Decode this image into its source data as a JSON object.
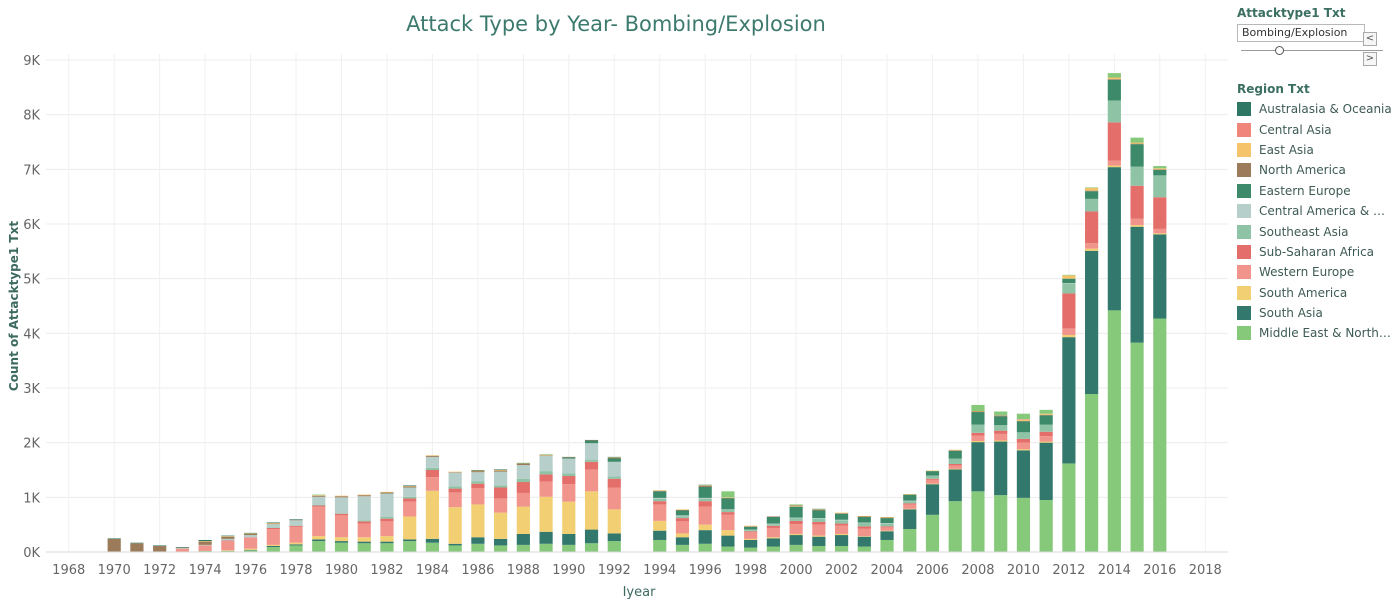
{
  "header": {
    "title": "Attack Type by Year- Bombing/Explosion"
  },
  "filter": {
    "title": "Attacktype1 Txt",
    "value": "Bombing/Explosion",
    "prev_icon": "chevron-left-icon",
    "next_icon": "chevron-right-icon",
    "prev_glyph": "<",
    "next_glyph": ">"
  },
  "legend": {
    "title": "Region Txt",
    "items": [
      {
        "label": "Australasia & Oceania",
        "color": "#2e7764"
      },
      {
        "label": "Central Asia",
        "color": "#f0857b"
      },
      {
        "label": "East Asia",
        "color": "#f5c46a"
      },
      {
        "label": "North America",
        "color": "#9c7b5a"
      },
      {
        "label": "Eastern Europe",
        "color": "#3c8a6a"
      },
      {
        "label": "Central America & Car..",
        "color": "#b6cfca"
      },
      {
        "label": "Southeast Asia",
        "color": "#8ec3a6"
      },
      {
        "label": "Sub-Saharan Africa",
        "color": "#e46f6a"
      },
      {
        "label": "Western Europe",
        "color": "#f1958c"
      },
      {
        "label": "South America",
        "color": "#f2cf72"
      },
      {
        "label": "South Asia",
        "color": "#33786d"
      },
      {
        "label": "Middle East & North A..",
        "color": "#86c97b"
      }
    ]
  },
  "chart_data": {
    "type": "bar",
    "stacked": true,
    "title": "Attack Type by Year- Bombing/Explosion",
    "xlabel": "Iyear",
    "ylabel": "Count of Attacktype1 Txt",
    "ylim": [
      0,
      9000
    ],
    "yticks": [
      {
        "value": 0,
        "label": "0K"
      },
      {
        "value": 1000,
        "label": "1K"
      },
      {
        "value": 2000,
        "label": "2K"
      },
      {
        "value": 3000,
        "label": "3K"
      },
      {
        "value": 4000,
        "label": "4K"
      },
      {
        "value": 5000,
        "label": "5K"
      },
      {
        "value": 6000,
        "label": "6K"
      },
      {
        "value": 7000,
        "label": "7K"
      },
      {
        "value": 8000,
        "label": "8K"
      },
      {
        "value": 9000,
        "label": "9K"
      }
    ],
    "xlim": [
      1967,
      2019
    ],
    "xticks": [
      "1968",
      "1970",
      "1972",
      "1974",
      "1976",
      "1978",
      "1980",
      "1982",
      "1984",
      "1986",
      "1988",
      "1990",
      "1992",
      "1994",
      "1996",
      "1998",
      "2000",
      "2002",
      "2004",
      "2006",
      "2008",
      "2010",
      "2012",
      "2014",
      "2016",
      "2018"
    ],
    "grid": true,
    "legend_position": "right",
    "series_order_bottom_to_top": [
      "Middle East & North A..",
      "South Asia",
      "South America",
      "Western Europe",
      "Sub-Saharan Africa",
      "Southeast Asia",
      "Central America & Car..",
      "Eastern Europe",
      "North America",
      "East Asia",
      "Central Asia",
      "Australasia & Oceania"
    ],
    "totals": {
      "1970": 250,
      "1971": 170,
      "1972": 120,
      "1973": 90,
      "1974": 220,
      "1975": 300,
      "1976": 350,
      "1977": 540,
      "1978": 600,
      "1979": 1050,
      "1980": 950,
      "1981": 1050,
      "1982": 1100,
      "1983": 1220,
      "1984": 1770,
      "1985": 1470,
      "1986": 1500,
      "1987": 1510,
      "1988": 1630,
      "1989": 1790,
      "1990": 1740,
      "1991": 2000,
      "1992": 1740,
      "1994": 1130,
      "1995": 780,
      "1996": 1220,
      "1997": 1110,
      "1998": 480,
      "1999": 650,
      "2000": 870,
      "2001": 790,
      "2002": 720,
      "2003": 660,
      "2004": 640,
      "2005": 1060,
      "2006": 1490,
      "2007": 1870,
      "2008": 2690,
      "2009": 2570,
      "2010": 2530,
      "2011": 2600,
      "2012": 5070,
      "2013": 6670,
      "2014": 8760,
      "2015": 7580,
      "2016": 7060
    },
    "series": [
      {
        "name": "Middle East & North A..",
        "values": {
          "1970": 0,
          "1971": 0,
          "1972": 0,
          "1973": 0,
          "1974": 20,
          "1975": 20,
          "1976": 30,
          "1977": 90,
          "1978": 120,
          "1979": 200,
          "1980": 170,
          "1981": 160,
          "1982": 160,
          "1983": 200,
          "1984": 170,
          "1985": 120,
          "1986": 150,
          "1987": 120,
          "1988": 130,
          "1989": 150,
          "1990": 130,
          "1991": 160,
          "1992": 200,
          "1994": 220,
          "1995": 130,
          "1996": 150,
          "1997": 100,
          "1998": 80,
          "1999": 100,
          "2000": 130,
          "2001": 110,
          "2002": 110,
          "2003": 100,
          "2004": 220,
          "2005": 420,
          "2006": 680,
          "2007": 930,
          "2008": 1110,
          "2009": 1040,
          "2010": 990,
          "2011": 950,
          "2012": 1620,
          "2013": 2890,
          "2014": 4420,
          "2015": 3830,
          "2016": 4270
        }
      },
      {
        "name": "South Asia",
        "values": {
          "1970": 0,
          "1971": 0,
          "1972": 0,
          "1973": 0,
          "1974": 0,
          "1975": 0,
          "1976": 10,
          "1977": 20,
          "1978": 20,
          "1979": 30,
          "1980": 30,
          "1981": 30,
          "1982": 30,
          "1983": 30,
          "1984": 70,
          "1985": 30,
          "1986": 120,
          "1987": 120,
          "1988": 200,
          "1989": 220,
          "1990": 200,
          "1991": 250,
          "1992": 140,
          "1994": 170,
          "1995": 140,
          "1996": 250,
          "1997": 200,
          "1998": 140,
          "1999": 150,
          "2000": 180,
          "2001": 170,
          "2002": 200,
          "2003": 180,
          "2004": 160,
          "2005": 360,
          "2006": 560,
          "2007": 580,
          "2008": 900,
          "2009": 980,
          "2010": 870,
          "2011": 1050,
          "2012": 2310,
          "2013": 2620,
          "2014": 2620,
          "2015": 2120,
          "2016": 1540
        }
      },
      {
        "name": "South America",
        "values": {
          "1970": 0,
          "1971": 0,
          "1972": 0,
          "1973": 0,
          "1974": 0,
          "1975": 10,
          "1976": 20,
          "1977": 20,
          "1978": 30,
          "1979": 60,
          "1980": 70,
          "1981": 80,
          "1982": 100,
          "1983": 420,
          "1984": 880,
          "1985": 670,
          "1986": 600,
          "1987": 480,
          "1988": 500,
          "1989": 640,
          "1990": 590,
          "1991": 700,
          "1992": 440,
          "1994": 180,
          "1995": 70,
          "1996": 100,
          "1997": 100,
          "1998": 20,
          "1999": 20,
          "2000": 20,
          "2001": 20,
          "2002": 20,
          "2003": 10,
          "2004": 10,
          "2005": 10,
          "2006": 10,
          "2007": 10,
          "2008": 20,
          "2009": 20,
          "2010": 20,
          "2011": 20,
          "2012": 40,
          "2013": 40,
          "2014": 30,
          "2015": 30,
          "2016": 20
        }
      },
      {
        "name": "Western Europe",
        "values": {
          "1970": 0,
          "1971": 0,
          "1972": 0,
          "1973": 60,
          "1974": 100,
          "1975": 170,
          "1976": 200,
          "1977": 290,
          "1978": 290,
          "1979": 540,
          "1980": 400,
          "1981": 250,
          "1982": 270,
          "1983": 270,
          "1984": 250,
          "1985": 270,
          "1986": 300,
          "1987": 260,
          "1988": 250,
          "1989": 280,
          "1990": 320,
          "1991": 400,
          "1992": 400,
          "1994": 300,
          "1995": 220,
          "1996": 330,
          "1997": 280,
          "1998": 120,
          "1999": 170,
          "2000": 180,
          "2001": 200,
          "2002": 150,
          "2003": 140,
          "2004": 60,
          "2005": 80,
          "2006": 70,
          "2007": 60,
          "2008": 100,
          "2009": 120,
          "2010": 120,
          "2011": 100,
          "2012": 120,
          "2013": 100,
          "2014": 90,
          "2015": 120,
          "2016": 80
        }
      },
      {
        "name": "Sub-Saharan Africa",
        "values": {
          "1970": 0,
          "1971": 0,
          "1972": 0,
          "1973": 0,
          "1974": 0,
          "1975": 10,
          "1976": 10,
          "1977": 20,
          "1978": 20,
          "1979": 20,
          "1980": 30,
          "1981": 40,
          "1982": 50,
          "1983": 60,
          "1984": 130,
          "1985": 70,
          "1986": 80,
          "1987": 200,
          "1988": 200,
          "1989": 130,
          "1990": 150,
          "1991": 140,
          "1992": 160,
          "1994": 60,
          "1995": 60,
          "1996": 100,
          "1997": 50,
          "1998": 20,
          "1999": 40,
          "2000": 60,
          "2001": 50,
          "2002": 40,
          "2003": 40,
          "2004": 20,
          "2005": 20,
          "2006": 20,
          "2007": 30,
          "2008": 50,
          "2009": 60,
          "2010": 70,
          "2011": 80,
          "2012": 640,
          "2013": 580,
          "2014": 700,
          "2015": 600,
          "2016": 580
        }
      },
      {
        "name": "Southeast Asia",
        "values": {
          "1970": 0,
          "1971": 0,
          "1972": 0,
          "1973": 0,
          "1974": 0,
          "1975": 0,
          "1976": 0,
          "1977": 10,
          "1978": 10,
          "1979": 10,
          "1980": 10,
          "1981": 20,
          "1982": 30,
          "1983": 30,
          "1984": 40,
          "1985": 40,
          "1986": 40,
          "1987": 40,
          "1988": 60,
          "1989": 60,
          "1990": 50,
          "1991": 40,
          "1992": 40,
          "1994": 40,
          "1995": 30,
          "1996": 40,
          "1997": 40,
          "1998": 20,
          "1999": 30,
          "2000": 50,
          "2001": 60,
          "2002": 60,
          "2003": 60,
          "2004": 50,
          "2005": 40,
          "2006": 60,
          "2007": 100,
          "2008": 150,
          "2009": 100,
          "2010": 120,
          "2011": 130,
          "2012": 180,
          "2013": 230,
          "2014": 400,
          "2015": 350,
          "2016": 400
        }
      },
      {
        "name": "Central America & Car..",
        "values": {
          "1970": 10,
          "1971": 10,
          "1972": 10,
          "1973": 10,
          "1974": 10,
          "1975": 30,
          "1976": 40,
          "1977": 60,
          "1978": 90,
          "1979": 150,
          "1980": 290,
          "1981": 440,
          "1982": 430,
          "1983": 170,
          "1984": 200,
          "1985": 250,
          "1986": 170,
          "1987": 250,
          "1988": 250,
          "1989": 280,
          "1990": 270,
          "1991": 300,
          "1992": 270,
          "1994": 20,
          "1995": 20,
          "1996": 20,
          "1997": 10,
          "1998": 10,
          "1999": 10,
          "2000": 10,
          "2001": 10,
          "2002": 10,
          "2003": 10,
          "2004": 10,
          "2005": 10,
          "2006": 0,
          "2007": 0,
          "2008": 0,
          "2009": 0,
          "2010": 0,
          "2011": 0,
          "2012": 10,
          "2013": 0,
          "2014": 0,
          "2015": 0,
          "2016": 0
        }
      },
      {
        "name": "Eastern Europe",
        "values": {
          "1970": 0,
          "1971": 0,
          "1972": 0,
          "1973": 0,
          "1974": 0,
          "1975": 0,
          "1976": 0,
          "1977": 0,
          "1978": 0,
          "1979": 0,
          "1980": 0,
          "1981": 0,
          "1982": 0,
          "1983": 0,
          "1984": 0,
          "1985": 0,
          "1986": 0,
          "1987": 0,
          "1988": 0,
          "1989": 0,
          "1990": 20,
          "1991": 50,
          "1992": 60,
          "1994": 120,
          "1995": 90,
          "1996": 200,
          "1997": 200,
          "1998": 50,
          "1999": 120,
          "2000": 200,
          "2001": 140,
          "2002": 110,
          "2003": 100,
          "2004": 90,
          "2005": 110,
          "2006": 80,
          "2007": 140,
          "2008": 230,
          "2009": 160,
          "2010": 200,
          "2011": 170,
          "2012": 80,
          "2013": 140,
          "2014": 380,
          "2015": 410,
          "2016": 100
        }
      },
      {
        "name": "North America",
        "values": {
          "1970": 230,
          "1971": 150,
          "1972": 100,
          "1973": 10,
          "1974": 60,
          "1975": 40,
          "1976": 20,
          "1977": 10,
          "1978": 10,
          "1979": 20,
          "1980": 20,
          "1981": 20,
          "1982": 20,
          "1983": 20,
          "1984": 20,
          "1985": 10,
          "1986": 20,
          "1987": 20,
          "1988": 20,
          "1989": 10,
          "1990": 10,
          "1991": 10,
          "1992": 10,
          "1994": 10,
          "1995": 10,
          "1996": 20,
          "1997": 10,
          "1998": 10,
          "1999": 10,
          "2000": 0,
          "2001": 10,
          "2002": 10,
          "2003": 10,
          "2004": 10,
          "2005": 0,
          "2006": 0,
          "2007": 10,
          "2008": 10,
          "2009": 10,
          "2010": 10,
          "2011": 10,
          "2012": 0,
          "2013": 10,
          "2014": 10,
          "2015": 10,
          "2016": 10
        }
      },
      {
        "name": "East Asia",
        "values": {
          "1970": 0,
          "1971": 0,
          "1972": 0,
          "1973": 0,
          "1974": 10,
          "1975": 10,
          "1976": 10,
          "1977": 10,
          "1978": 0,
          "1979": 10,
          "1980": 10,
          "1981": 10,
          "1982": 10,
          "1983": 10,
          "1984": 10,
          "1985": 10,
          "1986": 10,
          "1987": 10,
          "1988": 10,
          "1989": 10,
          "1990": 0,
          "1991": 0,
          "1992": 10,
          "1994": 10,
          "1995": 10,
          "1996": 10,
          "1997": 10,
          "1998": 10,
          "1999": 0,
          "2000": 10,
          "2001": 10,
          "2002": 10,
          "2003": 10,
          "2004": 10,
          "2005": 10,
          "2006": 10,
          "2007": 10,
          "2008": 10,
          "2009": 10,
          "2010": 20,
          "2011": 20,
          "2012": 60,
          "2013": 50,
          "2014": 30,
          "2015": 20,
          "2016": 20
        }
      },
      {
        "name": "Central Asia",
        "values": {
          "1970": 0,
          "1971": 0,
          "1972": 0,
          "1973": 0,
          "1974": 0,
          "1975": 0,
          "1976": 0,
          "1977": 0,
          "1978": 0,
          "1979": 0,
          "1980": 0,
          "1981": 0,
          "1982": 0,
          "1983": 0,
          "1984": 0,
          "1985": 0,
          "1986": 0,
          "1987": 0,
          "1988": 0,
          "1989": 0,
          "1990": 0,
          "1991": 0,
          "1992": 0,
          "1994": 0,
          "1995": 0,
          "1996": 0,
          "1997": 0,
          "1998": 0,
          "1999": 0,
          "2000": 10,
          "2001": 0,
          "2002": 0,
          "2003": 0,
          "2004": 0,
          "2005": 0,
          "2006": 0,
          "2007": 0,
          "2008": 0,
          "2009": 0,
          "2010": 10,
          "2011": 0,
          "2012": 0,
          "2013": 0,
          "2014": 0,
          "2015": 0,
          "2016": 0
        }
      },
      {
        "name": "Australasia & Oceania",
        "values": {
          "1970": 10,
          "1971": 10,
          "1972": 10,
          "1973": 10,
          "1974": 20,
          "1975": 10,
          "1976": 10,
          "1977": 10,
          "1978": 10,
          "1979": 0,
          "1980": 0,
          "1981": 0,
          "1982": 0,
          "1983": 10,
          "1984": 0,
          "1985": 0,
          "1986": 10,
          "1987": 10,
          "1988": 10,
          "1989": 0,
          "1990": 0,
          "1991": 0,
          "1992": 10,
          "1994": 0,
          "1995": 0,
          "1996": 10,
          "1997": 0,
          "1998": 0,
          "1999": 0,
          "2000": 0,
          "2001": 10,
          "2002": 0,
          "2003": 0,
          "2004": 0,
          "2005": 0,
          "2006": 0,
          "2007": 0,
          "2008": 0,
          "2009": 10,
          "2010": 0,
          "2011": 0,
          "2012": 0,
          "2013": 0,
          "2014": 0,
          "2015": 0,
          "2016": 0
        }
      }
    ]
  }
}
